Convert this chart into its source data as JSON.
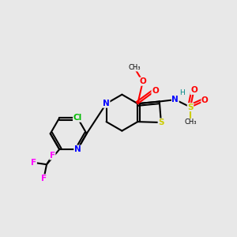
{
  "bg_color": "#e8e8e8",
  "bond_color": "#000000",
  "atom_colors": {
    "N": "#0000ff",
    "S": "#cccc00",
    "O": "#ff0000",
    "Cl": "#00bb00",
    "F": "#ff00ff",
    "H": "#008888",
    "C": "#000000"
  }
}
